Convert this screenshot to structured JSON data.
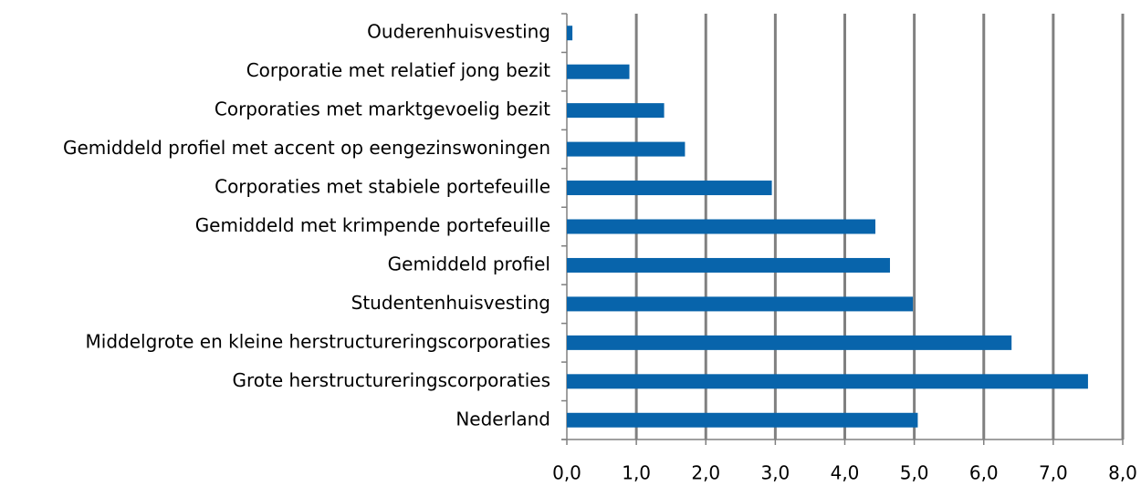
{
  "chart_data": {
    "type": "bar",
    "orientation": "horizontal",
    "categories": [
      "Ouderenhuisvesting",
      "Corporatie met relatief jong bezit",
      "Corporaties met marktgevoelig bezit",
      "Gemiddeld profiel met accent op eengezinswoningen",
      "Corporaties met stabiele portefeuille",
      "Gemiddeld met krimpende portefeuille",
      "Gemiddeld profiel",
      "Studentenhuisvesting",
      "Middelgrote en kleine herstructureringscorporaties",
      "Grote herstructureringscorporaties",
      "Nederland"
    ],
    "values": [
      0.08,
      0.9,
      1.4,
      1.7,
      2.95,
      4.44,
      4.65,
      4.98,
      6.4,
      7.5,
      5.05
    ],
    "color": "#0864ab",
    "xlim": [
      0,
      8
    ],
    "xticks": [
      {
        "value": 0,
        "label": "0,0"
      },
      {
        "value": 1,
        "label": "1,0"
      },
      {
        "value": 2,
        "label": "2,0"
      },
      {
        "value": 3,
        "label": "3,0"
      },
      {
        "value": 4,
        "label": "4,0"
      },
      {
        "value": 5,
        "label": "5,0"
      },
      {
        "value": 6,
        "label": "6,0"
      },
      {
        "value": 7,
        "label": "7,0"
      },
      {
        "value": 8,
        "label": "8,0"
      }
    ],
    "grid": true
  }
}
